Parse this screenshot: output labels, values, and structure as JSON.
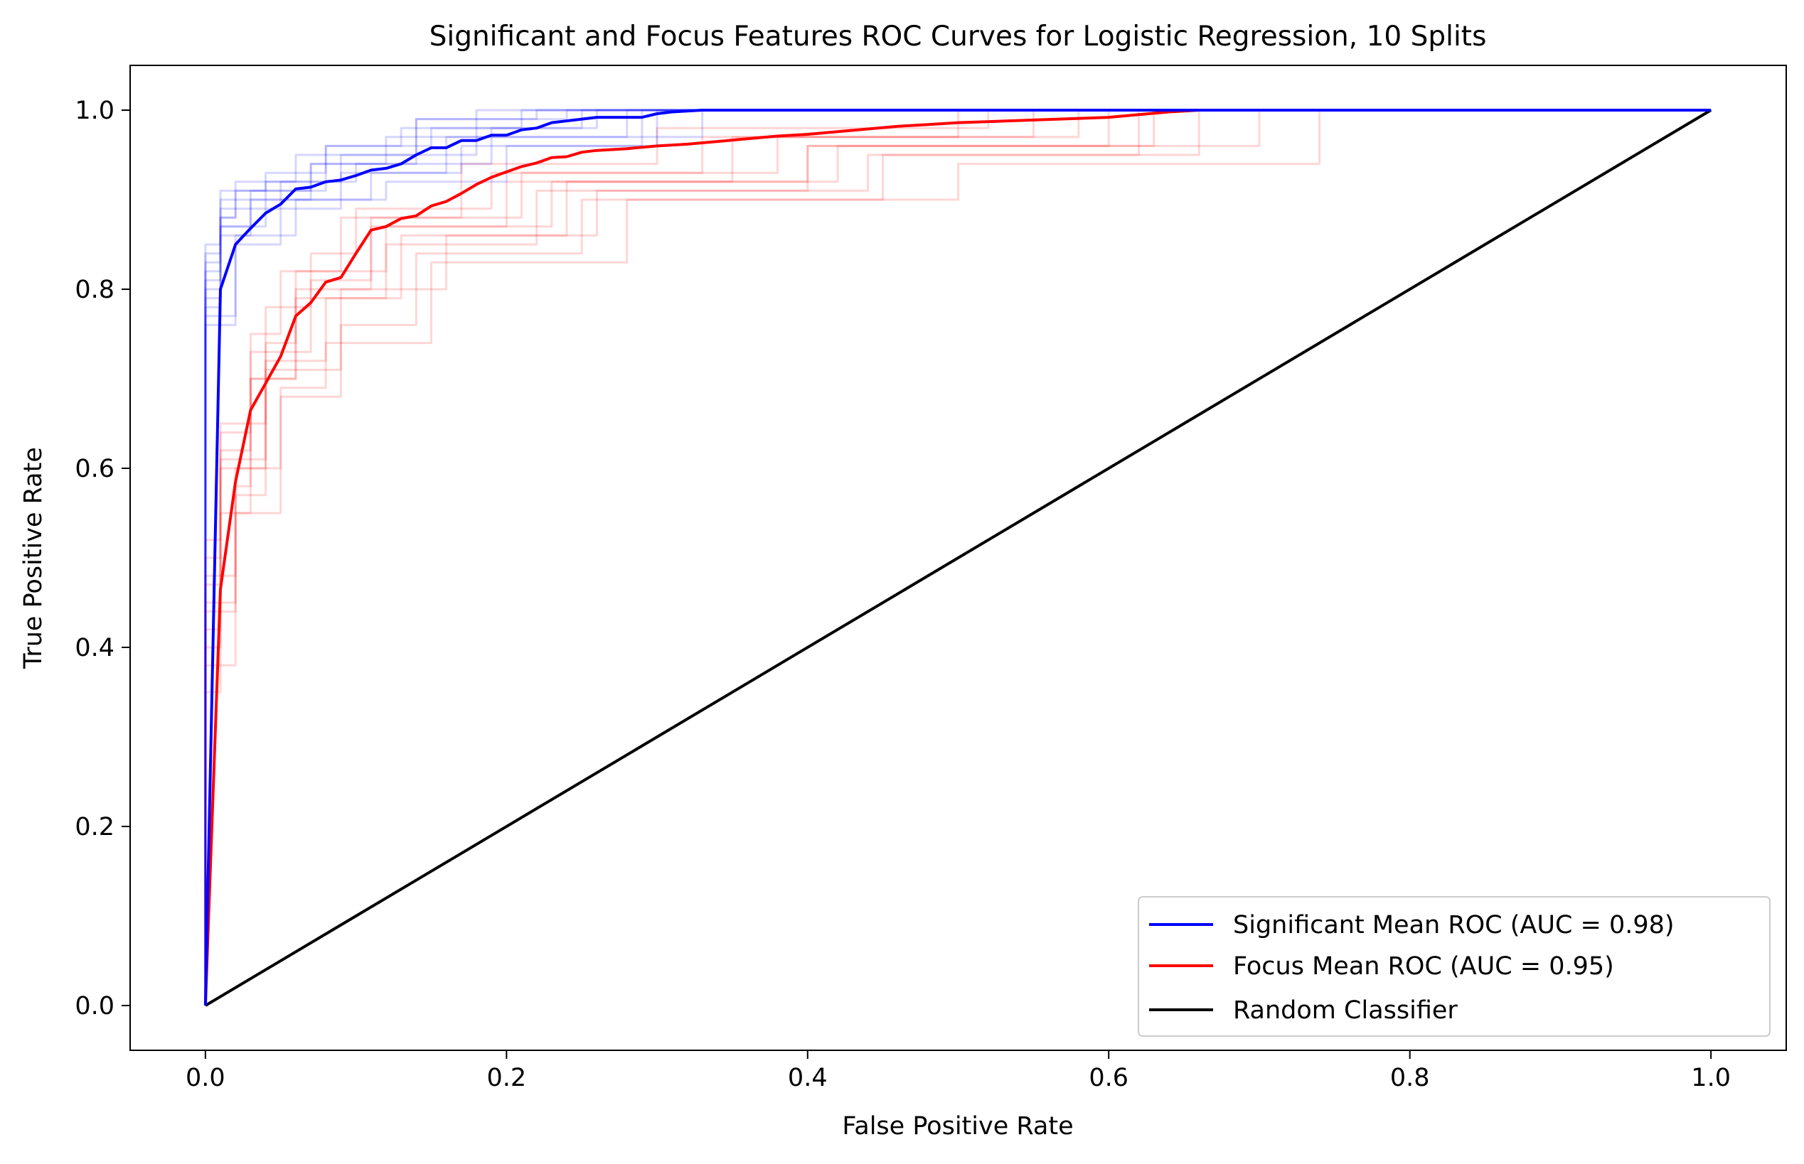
{
  "chart_data": {
    "type": "line",
    "title": "Significant and Focus Features ROC Curves for Logistic Regression, 10 Splits",
    "xlabel": "False Positive Rate",
    "ylabel": "True Positive Rate",
    "xlim": [
      -0.05,
      1.05
    ],
    "ylim": [
      -0.05,
      1.05
    ],
    "xticks": [
      "0.0",
      "0.2",
      "0.4",
      "0.6",
      "0.8",
      "1.0"
    ],
    "yticks": [
      "0.0",
      "0.2",
      "0.4",
      "0.6",
      "0.8",
      "1.0"
    ],
    "grid": false,
    "legend_position": "bottom-right",
    "colors": {
      "significant": "#0000ff",
      "focus": "#ff0000",
      "random": "#000000"
    },
    "series": [
      {
        "name": "Significant Mean ROC (AUC = 0.98)",
        "color": "#0000ff",
        "x": [
          0.0,
          0.01,
          0.02,
          0.03,
          0.04,
          0.05,
          0.06,
          0.07,
          0.08,
          0.09,
          0.1,
          0.11,
          0.12,
          0.13,
          0.14,
          0.15,
          0.16,
          0.17,
          0.18,
          0.19,
          0.2,
          0.21,
          0.22,
          0.23,
          0.24,
          0.25,
          0.26,
          0.27,
          0.28,
          0.29,
          0.3,
          0.31,
          0.33,
          0.35,
          0.4,
          0.5,
          0.6,
          0.7,
          0.8,
          0.9,
          1.0
        ],
        "y": [
          0.0,
          0.8,
          0.85,
          0.868,
          0.885,
          0.895,
          0.912,
          0.914,
          0.92,
          0.922,
          0.927,
          0.933,
          0.935,
          0.94,
          0.95,
          0.958,
          0.958,
          0.966,
          0.966,
          0.972,
          0.972,
          0.978,
          0.98,
          0.986,
          0.988,
          0.99,
          0.992,
          0.992,
          0.992,
          0.992,
          0.996,
          0.998,
          1.0,
          1.0,
          1.0,
          1.0,
          1.0,
          1.0,
          1.0,
          1.0,
          1.0
        ]
      },
      {
        "name": "Focus Mean ROC (AUC = 0.95)",
        "color": "#ff0000",
        "x": [
          0.0,
          0.01,
          0.02,
          0.03,
          0.04,
          0.05,
          0.06,
          0.07,
          0.08,
          0.09,
          0.1,
          0.11,
          0.12,
          0.13,
          0.14,
          0.15,
          0.16,
          0.17,
          0.18,
          0.19,
          0.2,
          0.21,
          0.22,
          0.23,
          0.24,
          0.25,
          0.26,
          0.28,
          0.3,
          0.32,
          0.34,
          0.36,
          0.38,
          0.4,
          0.42,
          0.44,
          0.46,
          0.48,
          0.5,
          0.55,
          0.6,
          0.62,
          0.64,
          0.66,
          0.7,
          0.8,
          0.9,
          1.0
        ],
        "y": [
          0.0,
          0.465,
          0.585,
          0.665,
          0.695,
          0.725,
          0.77,
          0.785,
          0.808,
          0.813,
          0.84,
          0.866,
          0.87,
          0.879,
          0.882,
          0.893,
          0.898,
          0.907,
          0.917,
          0.925,
          0.931,
          0.937,
          0.941,
          0.947,
          0.948,
          0.953,
          0.955,
          0.957,
          0.96,
          0.962,
          0.965,
          0.968,
          0.971,
          0.973,
          0.976,
          0.979,
          0.982,
          0.984,
          0.986,
          0.989,
          0.992,
          0.995,
          0.998,
          1.0,
          1.0,
          1.0,
          1.0,
          1.0
        ]
      },
      {
        "name": "Random Classifier",
        "color": "#000000",
        "x": [
          0.0,
          1.0
        ],
        "y": [
          0.0,
          1.0
        ]
      }
    ],
    "splits": {
      "significant": [
        {
          "x": [
            0,
            0.0,
            0.01,
            0.01,
            0.04,
            0.04,
            0.08,
            0.08,
            0.15,
            0.15,
            0.25,
            0.25,
            1
          ],
          "y": [
            0,
            0.82,
            0.82,
            0.91,
            0.91,
            0.93,
            0.93,
            0.96,
            0.96,
            0.98,
            0.98,
            1,
            1
          ]
        },
        {
          "x": [
            0,
            0.0,
            0.01,
            0.01,
            0.03,
            0.03,
            0.07,
            0.07,
            0.12,
            0.12,
            0.18,
            0.18,
            1
          ],
          "y": [
            0,
            0.78,
            0.78,
            0.86,
            0.86,
            0.9,
            0.9,
            0.94,
            0.94,
            0.97,
            0.97,
            1,
            1
          ]
        },
        {
          "x": [
            0,
            0.0,
            0.01,
            0.01,
            0.02,
            0.02,
            0.06,
            0.06,
            0.14,
            0.14,
            0.22,
            0.22,
            1
          ],
          "y": [
            0,
            0.85,
            0.85,
            0.88,
            0.88,
            0.92,
            0.92,
            0.95,
            0.95,
            0.99,
            0.99,
            1,
            1
          ]
        },
        {
          "x": [
            0,
            0.0,
            0.02,
            0.02,
            0.05,
            0.05,
            0.09,
            0.09,
            0.17,
            0.17,
            0.3,
            0.3,
            1
          ],
          "y": [
            0,
            0.76,
            0.76,
            0.85,
            0.85,
            0.89,
            0.89,
            0.93,
            0.93,
            0.96,
            0.96,
            1,
            1
          ]
        },
        {
          "x": [
            0,
            0.0,
            0.01,
            0.01,
            0.04,
            0.04,
            0.1,
            0.1,
            0.19,
            0.19,
            0.26,
            0.26,
            1
          ],
          "y": [
            0,
            0.8,
            0.8,
            0.9,
            0.9,
            0.92,
            0.92,
            0.94,
            0.94,
            0.98,
            0.98,
            1,
            1
          ]
        },
        {
          "x": [
            0,
            0.0,
            0.01,
            0.01,
            0.03,
            0.03,
            0.08,
            0.08,
            0.13,
            0.13,
            0.21,
            0.21,
            1
          ],
          "y": [
            0,
            0.83,
            0.83,
            0.87,
            0.87,
            0.91,
            0.91,
            0.96,
            0.96,
            0.98,
            0.98,
            1,
            1
          ]
        },
        {
          "x": [
            0,
            0.0,
            0.02,
            0.02,
            0.06,
            0.06,
            0.11,
            0.11,
            0.16,
            0.16,
            0.28,
            0.28,
            1
          ],
          "y": [
            0,
            0.77,
            0.77,
            0.86,
            0.86,
            0.9,
            0.9,
            0.93,
            0.93,
            0.97,
            0.97,
            1,
            1
          ]
        },
        {
          "x": [
            0,
            0.0,
            0.01,
            0.01,
            0.05,
            0.05,
            0.09,
            0.09,
            0.18,
            0.18,
            0.33,
            0.33,
            1
          ],
          "y": [
            0,
            0.79,
            0.79,
            0.89,
            0.89,
            0.92,
            0.92,
            0.95,
            0.95,
            0.97,
            0.97,
            1,
            1
          ]
        },
        {
          "x": [
            0,
            0.0,
            0.01,
            0.01,
            0.02,
            0.02,
            0.07,
            0.07,
            0.14,
            0.14,
            0.24,
            0.24,
            1
          ],
          "y": [
            0,
            0.84,
            0.84,
            0.88,
            0.88,
            0.91,
            0.91,
            0.94,
            0.94,
            0.99,
            0.99,
            1,
            1
          ]
        },
        {
          "x": [
            0,
            0.0,
            0.01,
            0.01,
            0.04,
            0.04,
            0.12,
            0.12,
            0.2,
            0.2,
            0.29,
            0.29,
            1
          ],
          "y": [
            0,
            0.81,
            0.81,
            0.87,
            0.87,
            0.9,
            0.9,
            0.92,
            0.92,
            0.96,
            0.96,
            1,
            1
          ]
        }
      ],
      "focus": [
        {
          "x": [
            0,
            0.0,
            0.01,
            0.01,
            0.03,
            0.03,
            0.06,
            0.06,
            0.11,
            0.11,
            0.2,
            0.2,
            0.35,
            0.35,
            0.55,
            0.55,
            1
          ],
          "y": [
            0,
            0.35,
            0.35,
            0.55,
            0.55,
            0.7,
            0.7,
            0.8,
            0.8,
            0.87,
            0.87,
            0.92,
            0.92,
            0.97,
            0.97,
            1,
            1
          ]
        },
        {
          "x": [
            0,
            0.0,
            0.02,
            0.02,
            0.04,
            0.04,
            0.08,
            0.08,
            0.12,
            0.12,
            0.22,
            0.22,
            0.4,
            0.4,
            0.6,
            0.6,
            1
          ],
          "y": [
            0,
            0.48,
            0.48,
            0.6,
            0.6,
            0.72,
            0.72,
            0.79,
            0.79,
            0.85,
            0.85,
            0.91,
            0.91,
            0.96,
            0.96,
            1,
            1
          ]
        },
        {
          "x": [
            0,
            0.0,
            0.01,
            0.01,
            0.03,
            0.03,
            0.05,
            0.05,
            0.09,
            0.09,
            0.17,
            0.17,
            0.3,
            0.3,
            0.52,
            0.52,
            1
          ],
          "y": [
            0,
            0.42,
            0.42,
            0.62,
            0.62,
            0.75,
            0.75,
            0.82,
            0.82,
            0.88,
            0.88,
            0.94,
            0.94,
            0.98,
            0.98,
            1,
            1
          ]
        },
        {
          "x": [
            0,
            0.0,
            0.02,
            0.02,
            0.05,
            0.05,
            0.09,
            0.09,
            0.14,
            0.14,
            0.25,
            0.25,
            0.45,
            0.45,
            0.66,
            0.66,
            1
          ],
          "y": [
            0,
            0.38,
            0.38,
            0.55,
            0.55,
            0.68,
            0.68,
            0.76,
            0.76,
            0.84,
            0.84,
            0.9,
            0.9,
            0.95,
            0.95,
            1,
            1
          ]
        },
        {
          "x": [
            0,
            0.0,
            0.01,
            0.01,
            0.04,
            0.04,
            0.07,
            0.07,
            0.1,
            0.1,
            0.19,
            0.19,
            0.33,
            0.33,
            0.5,
            0.5,
            1
          ],
          "y": [
            0,
            0.5,
            0.5,
            0.65,
            0.65,
            0.78,
            0.78,
            0.84,
            0.84,
            0.89,
            0.89,
            0.93,
            0.93,
            0.97,
            0.97,
            1,
            1
          ]
        },
        {
          "x": [
            0,
            0.0,
            0.02,
            0.02,
            0.03,
            0.03,
            0.06,
            0.06,
            0.13,
            0.13,
            0.24,
            0.24,
            0.42,
            0.42,
            0.63,
            0.63,
            1
          ],
          "y": [
            0,
            0.45,
            0.45,
            0.58,
            0.58,
            0.7,
            0.7,
            0.79,
            0.79,
            0.86,
            0.86,
            0.92,
            0.92,
            0.96,
            0.96,
            1,
            1
          ]
        },
        {
          "x": [
            0,
            0.0,
            0.01,
            0.01,
            0.05,
            0.05,
            0.08,
            0.08,
            0.15,
            0.15,
            0.28,
            0.28,
            0.5,
            0.5,
            0.74,
            0.74,
            1
          ],
          "y": [
            0,
            0.4,
            0.4,
            0.6,
            0.6,
            0.69,
            0.69,
            0.74,
            0.74,
            0.83,
            0.83,
            0.9,
            0.9,
            0.94,
            0.94,
            1,
            1
          ]
        },
        {
          "x": [
            0,
            0.0,
            0.01,
            0.01,
            0.03,
            0.03,
            0.07,
            0.07,
            0.11,
            0.11,
            0.21,
            0.21,
            0.38,
            0.38,
            0.58,
            0.58,
            1
          ],
          "y": [
            0,
            0.52,
            0.52,
            0.64,
            0.64,
            0.73,
            0.73,
            0.81,
            0.81,
            0.88,
            0.88,
            0.93,
            0.93,
            0.97,
            0.97,
            1,
            1
          ]
        },
        {
          "x": [
            0,
            0.0,
            0.02,
            0.02,
            0.04,
            0.04,
            0.09,
            0.09,
            0.16,
            0.16,
            0.26,
            0.26,
            0.44,
            0.44,
            0.62,
            0.62,
            1
          ],
          "y": [
            0,
            0.44,
            0.44,
            0.57,
            0.57,
            0.71,
            0.71,
            0.8,
            0.8,
            0.86,
            0.86,
            0.91,
            0.91,
            0.95,
            0.95,
            1,
            1
          ]
        },
        {
          "x": [
            0,
            0.0,
            0.01,
            0.01,
            0.04,
            0.04,
            0.06,
            0.06,
            0.12,
            0.12,
            0.23,
            0.23,
            0.4,
            0.4,
            0.7,
            0.7,
            1
          ],
          "y": [
            0,
            0.47,
            0.47,
            0.61,
            0.61,
            0.74,
            0.74,
            0.82,
            0.82,
            0.87,
            0.87,
            0.92,
            0.92,
            0.96,
            0.96,
            1,
            1
          ]
        }
      ]
    }
  }
}
